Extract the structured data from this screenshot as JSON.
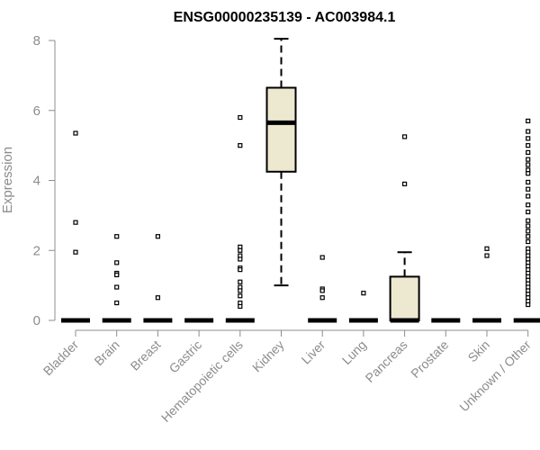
{
  "chart_data": {
    "type": "boxplot",
    "title": "ENSG00000235139 - AC003984.1",
    "xlabel": "",
    "ylabel": "Expression",
    "ylim": [
      0,
      8
    ],
    "yticks": [
      0,
      2,
      4,
      6,
      8
    ],
    "grid": false,
    "box_color": "#ede8d0",
    "categories": [
      "Bladder",
      "Brain",
      "Breast",
      "Gastric",
      "Hematopoietic cells",
      "Kidney",
      "Liver",
      "Lung",
      "Pancreas",
      "Prostate",
      "Skin",
      "Unknown / Other"
    ],
    "boxes": [
      {
        "q1": 0,
        "median": 0,
        "q3": 0,
        "whisker_low": 0,
        "whisker_high": 0,
        "outliers": [
          5.35,
          2.8,
          1.95
        ]
      },
      {
        "q1": 0,
        "median": 0,
        "q3": 0,
        "whisker_low": 0,
        "whisker_high": 0,
        "outliers": [
          2.4,
          1.65,
          1.35,
          1.3,
          0.95,
          0.5
        ]
      },
      {
        "q1": 0,
        "median": 0,
        "q3": 0,
        "whisker_low": 0,
        "whisker_high": 0,
        "outliers": [
          2.4,
          0.65
        ]
      },
      {
        "q1": 0,
        "median": 0,
        "q3": 0,
        "whisker_low": 0,
        "whisker_high": 0,
        "outliers": []
      },
      {
        "q1": 0,
        "median": 0,
        "q3": 0,
        "whisker_low": 0,
        "whisker_high": 0,
        "outliers": [
          5.8,
          5.0,
          2.1,
          2.0,
          1.85,
          1.75,
          1.5,
          1.45,
          1.1,
          0.95,
          0.85,
          0.7,
          0.5,
          0.4
        ]
      },
      {
        "q1": 4.25,
        "median": 5.65,
        "q3": 6.65,
        "whisker_low": 1.0,
        "whisker_high": 8.05,
        "outliers": []
      },
      {
        "q1": 0,
        "median": 0,
        "q3": 0,
        "whisker_low": 0,
        "whisker_high": 0,
        "outliers": [
          1.8,
          0.9,
          0.85,
          0.65
        ]
      },
      {
        "q1": 0,
        "median": 0,
        "q3": 0,
        "whisker_low": 0,
        "whisker_high": 0,
        "outliers": [
          0.78
        ]
      },
      {
        "q1": 0,
        "median": 0,
        "q3": 1.25,
        "whisker_low": 0,
        "whisker_high": 1.95,
        "outliers": [
          5.25,
          3.9
        ]
      },
      {
        "q1": 0,
        "median": 0,
        "q3": 0,
        "whisker_low": 0,
        "whisker_high": 0,
        "outliers": []
      },
      {
        "q1": 0,
        "median": 0,
        "q3": 0,
        "whisker_low": 0,
        "whisker_high": 0,
        "outliers": [
          2.05,
          1.85
        ]
      },
      {
        "q1": 0,
        "median": 0,
        "q3": 0,
        "whisker_low": 0,
        "whisker_high": 0,
        "outliers": [
          5.7,
          5.4,
          5.2,
          5.0,
          4.8,
          4.6,
          4.45,
          4.3,
          4.2,
          3.95,
          3.75,
          3.55,
          3.3,
          3.1,
          2.85,
          2.7,
          2.55,
          2.4,
          2.25,
          2.05,
          1.95,
          1.85,
          1.75,
          1.65,
          1.55,
          1.45,
          1.35,
          1.25,
          1.15,
          1.05,
          0.95,
          0.85,
          0.75,
          0.65,
          0.55,
          0.45
        ]
      }
    ]
  }
}
